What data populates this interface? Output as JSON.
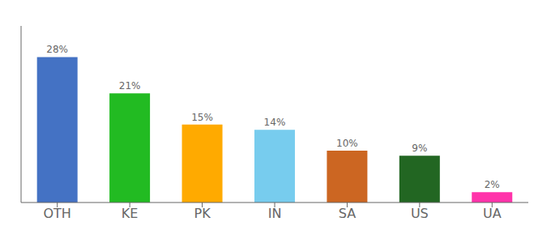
{
  "chart_data": {
    "type": "bar",
    "categories": [
      "OTH",
      "KE",
      "PK",
      "IN",
      "SA",
      "US",
      "UA"
    ],
    "values": [
      28,
      21,
      15,
      14,
      10,
      9,
      2
    ],
    "value_labels": [
      "28%",
      "21%",
      "15%",
      "14%",
      "10%",
      "9%",
      "2%"
    ],
    "data_labels": true,
    "colors": [
      "#4472c4",
      "#22bb22",
      "#ffaa00",
      "#77ccee",
      "#cc6622",
      "#226622",
      "#ff33aa"
    ],
    "ylim": [
      0,
      34
    ],
    "grid": false,
    "tick_labels": "x"
  }
}
